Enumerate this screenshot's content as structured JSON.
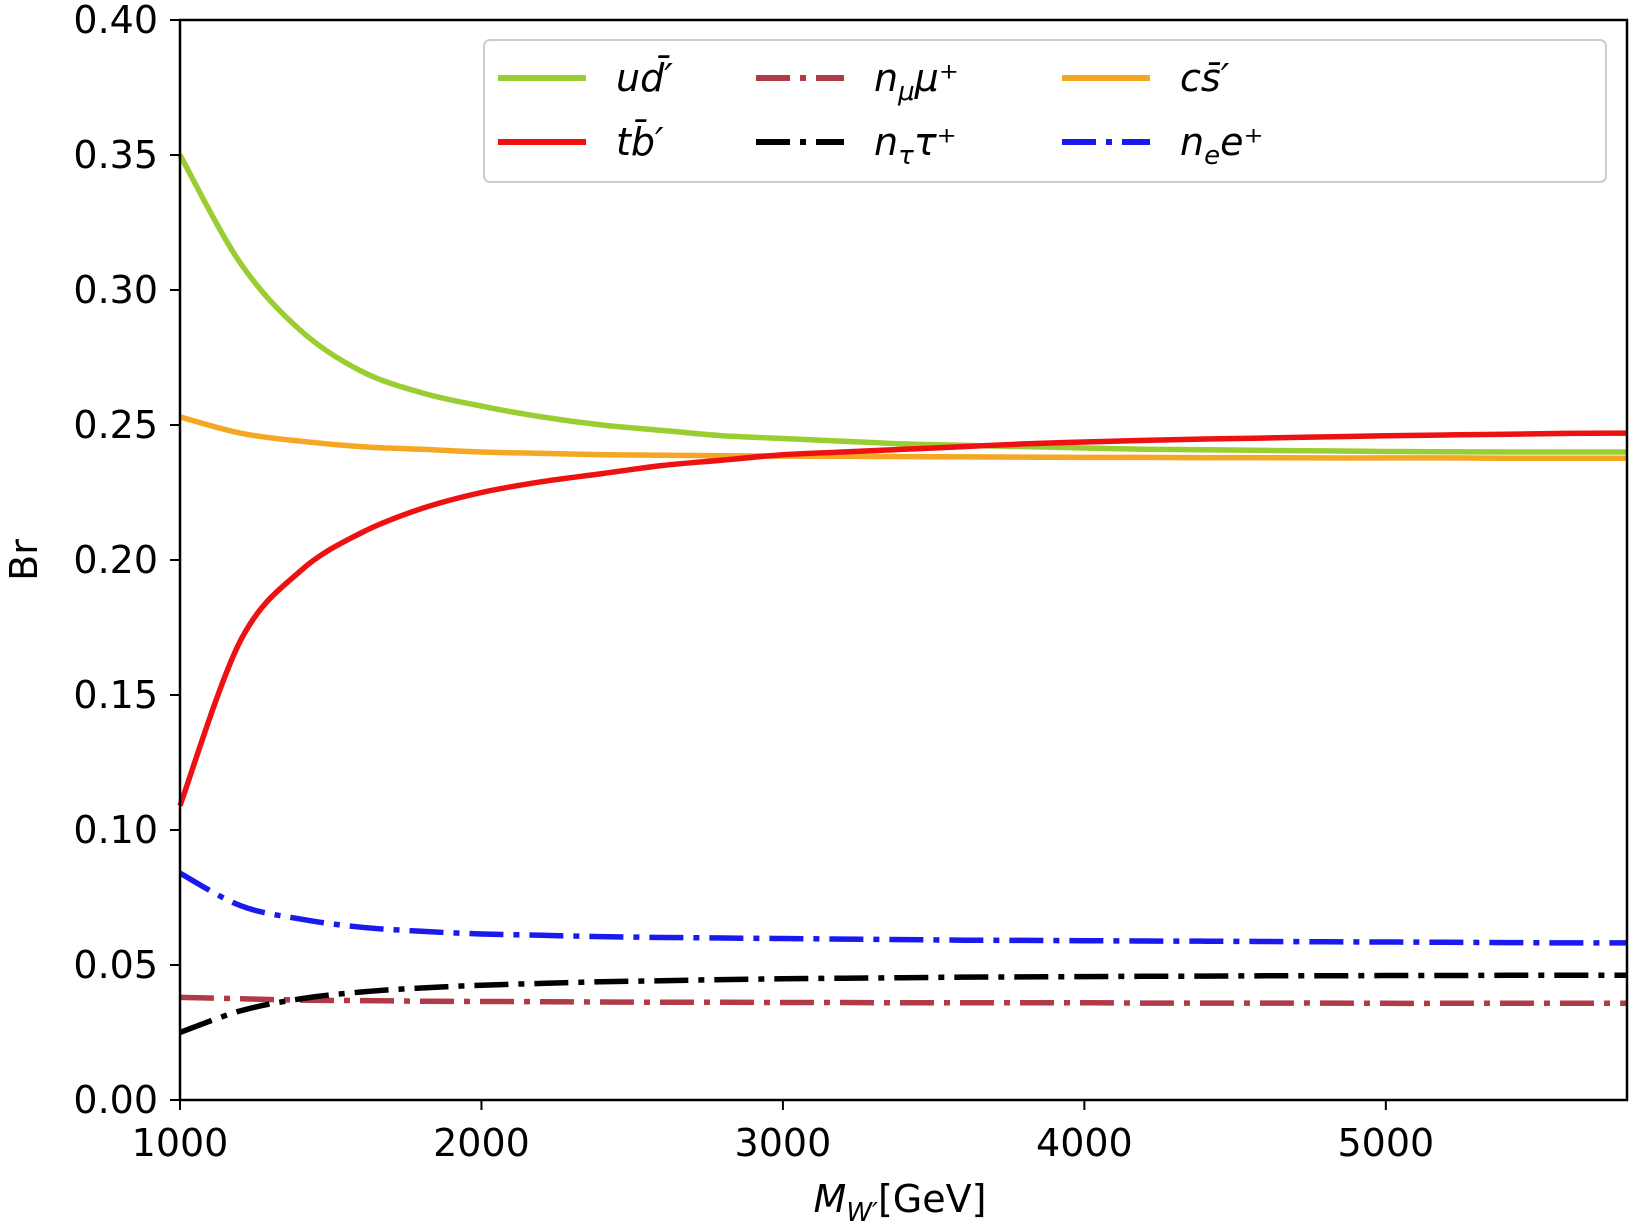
{
  "chart_data": {
    "type": "line",
    "title": "",
    "xlabel_main": "M",
    "xlabel_sub": "W′",
    "xlabel_unit": "[GeV]",
    "ylabel": "Br",
    "xlim": [
      1000,
      5800
    ],
    "ylim": [
      0.0,
      0.4
    ],
    "xticks": [
      1000,
      2000,
      3000,
      4000,
      5000
    ],
    "xtick_labels": [
      "1000",
      "2000",
      "3000",
      "4000",
      "5000"
    ],
    "yticks": [
      0.0,
      0.05,
      0.1,
      0.15,
      0.2,
      0.25,
      0.3,
      0.35,
      0.4
    ],
    "ytick_labels": [
      "0.00",
      "0.05",
      "0.10",
      "0.15",
      "0.20",
      "0.25",
      "0.30",
      "0.35",
      "0.40"
    ],
    "grid": false,
    "legend_position": "top-right",
    "x": [
      1000,
      1200,
      1400,
      1600,
      1800,
      2000,
      2200,
      2400,
      2600,
      2800,
      3000,
      3200,
      3400,
      3600,
      3800,
      4000,
      4200,
      4400,
      4600,
      4800,
      5000,
      5200,
      5400,
      5600,
      5800
    ],
    "series": [
      {
        "name": "ud̄′",
        "legend_main": "ud",
        "legend_over": "̄",
        "legend_tail": "′",
        "color": "#9acd32",
        "style": "solid",
        "values": [
          0.35,
          0.31,
          0.285,
          0.27,
          0.262,
          0.257,
          0.253,
          0.25,
          0.248,
          0.246,
          0.245,
          0.244,
          0.243,
          0.2425,
          0.242,
          0.2415,
          0.241,
          0.2408,
          0.2406,
          0.2404,
          0.2402,
          0.2401,
          0.24,
          0.24,
          0.24
        ]
      },
      {
        "name": "tb̄′",
        "legend_main": "tb",
        "legend_tail": "̄′",
        "color": "#ee1111",
        "style": "solid",
        "values": [
          0.109,
          0.17,
          0.196,
          0.21,
          0.219,
          0.225,
          0.229,
          0.232,
          0.235,
          0.237,
          0.239,
          0.24,
          0.241,
          0.242,
          0.243,
          0.2437,
          0.2443,
          0.2448,
          0.2452,
          0.2456,
          0.246,
          0.2463,
          0.2466,
          0.2469,
          0.247
        ]
      },
      {
        "name": "n_μμ⁺",
        "legend_main": "n",
        "legend_sub": "μ",
        "legend_tail": "μ⁺",
        "color": "#b03a48",
        "style": "dashdot",
        "values": [
          0.038,
          0.0375,
          0.037,
          0.0368,
          0.0366,
          0.0365,
          0.0364,
          0.0363,
          0.0362,
          0.0362,
          0.0361,
          0.0361,
          0.036,
          0.036,
          0.036,
          0.036,
          0.0359,
          0.0359,
          0.0359,
          0.0359,
          0.0358,
          0.0358,
          0.0358,
          0.0358,
          0.0358
        ]
      },
      {
        "name": "n_ττ⁺",
        "legend_main": "n",
        "legend_sub": "τ",
        "legend_tail": "τ⁺",
        "color": "#000000",
        "style": "dashdot",
        "values": [
          0.025,
          0.033,
          0.0375,
          0.04,
          0.0415,
          0.0425,
          0.0432,
          0.0438,
          0.0442,
          0.0446,
          0.0449,
          0.0451,
          0.0453,
          0.0455,
          0.0456,
          0.0457,
          0.0458,
          0.0459,
          0.046,
          0.046,
          0.0461,
          0.0461,
          0.0462,
          0.0462,
          0.0462
        ]
      },
      {
        "name": "cs̄′",
        "legend_main": "cs",
        "legend_tail": "̄′",
        "color": "#f5a623",
        "style": "solid",
        "values": [
          0.253,
          0.247,
          0.244,
          0.242,
          0.241,
          0.24,
          0.2395,
          0.239,
          0.2388,
          0.2386,
          0.2385,
          0.2384,
          0.2383,
          0.2382,
          0.2381,
          0.238,
          0.238,
          0.2379,
          0.2379,
          0.2378,
          0.2378,
          0.2378,
          0.2377,
          0.2377,
          0.2377
        ]
      },
      {
        "name": "n_ee⁺",
        "legend_main": "n",
        "legend_sub": "e",
        "legend_tail": "e⁺",
        "color": "#1a1aee",
        "style": "dashdot",
        "values": [
          0.084,
          0.072,
          0.067,
          0.064,
          0.0625,
          0.0615,
          0.061,
          0.0605,
          0.0602,
          0.06,
          0.0598,
          0.0596,
          0.0594,
          0.0592,
          0.0591,
          0.059,
          0.0589,
          0.0588,
          0.0587,
          0.0586,
          0.0585,
          0.0584,
          0.0583,
          0.0582,
          0.0582
        ]
      }
    ]
  }
}
